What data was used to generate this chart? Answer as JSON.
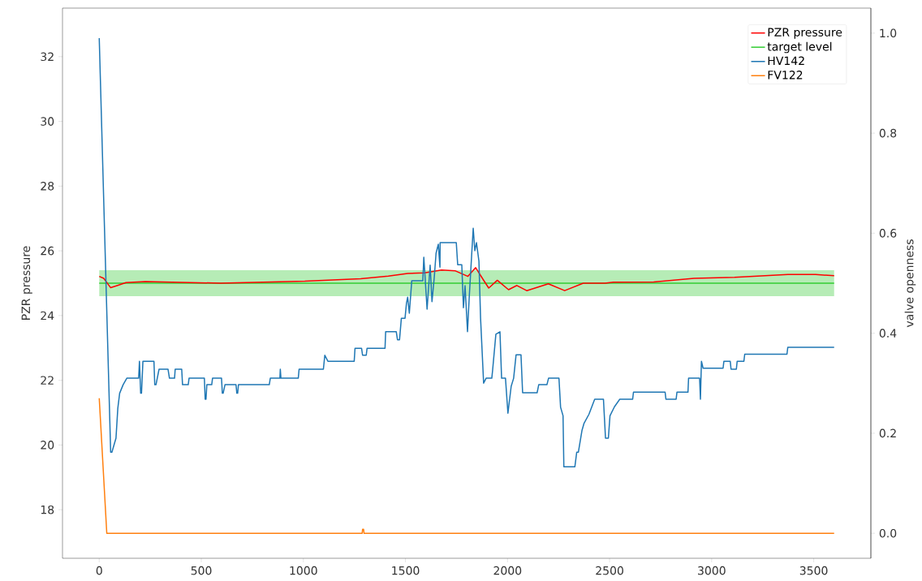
{
  "chart_data": {
    "type": "line",
    "ylabel": "PZR pressure",
    "y2label": "valve openness",
    "xlim": [
      -180,
      3780
    ],
    "ylim": [
      16.5,
      33.5
    ],
    "y2lim": [
      -0.05,
      1.05
    ],
    "xticks": [
      0,
      500,
      1000,
      1500,
      2000,
      2500,
      3000,
      3500
    ],
    "yticks": [
      18,
      20,
      22,
      24,
      26,
      28,
      30,
      32
    ],
    "y2ticks": [
      {
        "value": 0,
        "label": "0.0"
      },
      {
        "value": 0.2,
        "label": "0.2"
      },
      {
        "value": 0.4,
        "label": "0.4"
      },
      {
        "value": 0.6,
        "label": "0.6"
      },
      {
        "value": 0.8,
        "label": "0.8"
      },
      {
        "value": 1,
        "label": "1.0"
      }
    ],
    "legend": "top right",
    "bands": [
      {
        "axis": "y",
        "from": 24.6,
        "to": 25.4,
        "color": "#b6ecb6"
      }
    ],
    "series": [
      {
        "name": "PZR pressure",
        "color": "#ff0000",
        "x": [
          0,
          22,
          56,
          90,
          131,
          226,
          595,
          1007,
          1281,
          1416,
          1511,
          1594,
          1677,
          1745,
          1806,
          1844,
          1882,
          1908,
          1950,
          2005,
          2046,
          2094,
          2200,
          2280,
          2371,
          2478,
          2518,
          2716,
          2914,
          3112,
          3374,
          3509,
          3600
        ],
        "values": [
          25.21,
          25.15,
          24.86,
          24.93,
          25.02,
          25.05,
          25.0,
          25.06,
          25.14,
          25.22,
          25.3,
          25.32,
          25.41,
          25.38,
          25.21,
          25.48,
          25.1,
          24.85,
          25.09,
          24.8,
          24.93,
          24.77,
          24.98,
          24.77,
          25.0,
          25.0,
          25.03,
          25.04,
          25.15,
          25.18,
          25.27,
          25.27,
          25.23
        ]
      },
      {
        "name": "target level",
        "color": "#32cd32",
        "x": [
          0,
          3600
        ],
        "values": [
          25,
          25
        ]
      },
      {
        "name": "HV142",
        "color": "#1f77b4",
        "axis": "y2",
        "x": [
          0,
          56,
          62,
          82,
          91,
          100,
          117,
          135,
          193,
          197,
          203,
          207,
          214,
          268,
          272,
          278,
          293,
          337,
          344,
          369,
          372,
          404,
          408,
          436,
          440,
          515,
          519,
          523,
          527,
          551,
          555,
          599,
          603,
          607,
          616,
          670,
          674,
          678,
          682,
          833,
          838,
          885,
          887,
          890,
          975,
          979,
          1098,
          1105,
          1120,
          1249,
          1253,
          1285,
          1290,
          1308,
          1312,
          1400,
          1403,
          1455,
          1461,
          1471,
          1480,
          1498,
          1505,
          1511,
          1519,
          1531,
          1585,
          1590,
          1606,
          1621,
          1630,
          1641,
          1650,
          1661,
          1669,
          1670,
          1749,
          1756,
          1776,
          1784,
          1792,
          1804,
          1812,
          1824,
          1832,
          1840,
          1848,
          1860,
          1868,
          1883,
          1895,
          1923,
          1927,
          1943,
          1963,
          1971,
          1990,
          2002,
          2018,
          2030,
          2042,
          2066,
          2074,
          2145,
          2153,
          2193,
          2201,
          2252,
          2260,
          2272,
          2276,
          2330,
          2339,
          2347,
          2365,
          2375,
          2399,
          2427,
          2470,
          2480,
          2494,
          2502,
          2524,
          2550,
          2613,
          2617,
          2772,
          2776,
          2826,
          2830,
          2884,
          2887,
          2941,
          2945,
          2950,
          2958,
          3056,
          3060,
          3091,
          3095,
          3121,
          3125,
          3158,
          3162,
          3369,
          3373,
          3600
        ],
        "values": [
          0.99,
          0.162,
          0.162,
          0.19,
          0.25,
          0.28,
          0.297,
          0.31,
          0.31,
          0.344,
          0.28,
          0.28,
          0.344,
          0.344,
          0.297,
          0.297,
          0.328,
          0.328,
          0.31,
          0.31,
          0.328,
          0.328,
          0.297,
          0.297,
          0.31,
          0.31,
          0.268,
          0.268,
          0.297,
          0.297,
          0.31,
          0.31,
          0.28,
          0.28,
          0.297,
          0.297,
          0.28,
          0.28,
          0.297,
          0.297,
          0.31,
          0.31,
          0.328,
          0.31,
          0.31,
          0.328,
          0.328,
          0.356,
          0.344,
          0.344,
          0.37,
          0.37,
          0.356,
          0.356,
          0.37,
          0.37,
          0.403,
          0.403,
          0.387,
          0.387,
          0.43,
          0.43,
          0.46,
          0.472,
          0.44,
          0.505,
          0.505,
          0.552,
          0.448,
          0.536,
          0.463,
          0.511,
          0.56,
          0.578,
          0.532,
          0.581,
          0.581,
          0.537,
          0.537,
          0.451,
          0.495,
          0.403,
          0.468,
          0.554,
          0.61,
          0.565,
          0.581,
          0.544,
          0.43,
          0.3,
          0.31,
          0.31,
          0.326,
          0.398,
          0.403,
          0.31,
          0.31,
          0.24,
          0.294,
          0.31,
          0.357,
          0.357,
          0.281,
          0.281,
          0.297,
          0.297,
          0.31,
          0.31,
          0.252,
          0.235,
          0.133,
          0.133,
          0.162,
          0.162,
          0.206,
          0.22,
          0.238,
          0.268,
          0.268,
          0.19,
          0.19,
          0.235,
          0.253,
          0.268,
          0.268,
          0.282,
          0.282,
          0.268,
          0.268,
          0.282,
          0.282,
          0.31,
          0.31,
          0.268,
          0.344,
          0.33,
          0.33,
          0.344,
          0.344,
          0.328,
          0.328,
          0.344,
          0.344,
          0.358,
          0.358,
          0.372,
          0.372
        ]
      },
      {
        "name": "FV122",
        "color": "#ff7f0e",
        "axis": "y2",
        "x": [
          0,
          37,
          1288,
          1290,
          1295,
          1297,
          3600
        ],
        "values": [
          0.27,
          0,
          0,
          0.008,
          0.008,
          0,
          0
        ]
      }
    ]
  }
}
